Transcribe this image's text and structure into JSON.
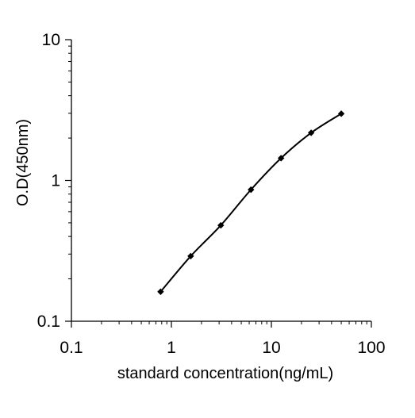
{
  "chart_data": {
    "type": "line",
    "title": "",
    "xlabel": "standard concentration(ng/mL)",
    "ylabel": "O.D(450nm)",
    "xscale": "log",
    "yscale": "log",
    "xlim": [
      0.1,
      100
    ],
    "ylim": [
      0.1,
      10
    ],
    "x_tick_labels": [
      "0.1",
      "1",
      "10",
      "100"
    ],
    "y_tick_labels": [
      "0.1",
      "1",
      "10"
    ],
    "grid": false,
    "legend": "none",
    "series": [
      {
        "x": [
          0.78,
          1.56,
          3.12,
          6.25,
          12.5,
          25,
          50
        ],
        "y": [
          0.162,
          0.29,
          0.48,
          0.86,
          1.44,
          2.18,
          2.98
        ],
        "color": "#000000",
        "marker": "diamond"
      }
    ]
  }
}
